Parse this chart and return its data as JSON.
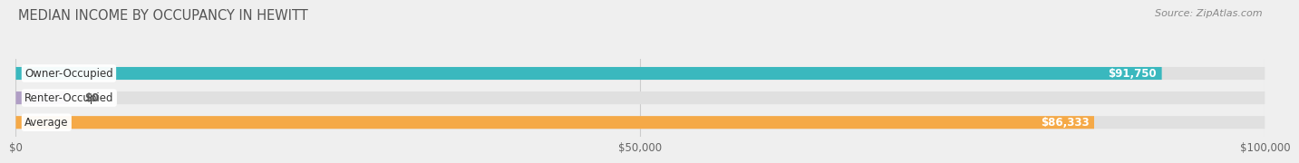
{
  "title": "MEDIAN INCOME BY OCCUPANCY IN HEWITT",
  "source": "Source: ZipAtlas.com",
  "categories": [
    "Owner-Occupied",
    "Renter-Occupied",
    "Average"
  ],
  "values": [
    91750,
    0,
    86333
  ],
  "bar_colors": [
    "#3ab8be",
    "#b09ec5",
    "#f5a947"
  ],
  "value_labels": [
    "$91,750",
    "$0",
    "$86,333"
  ],
  "xlim": [
    0,
    100000
  ],
  "xtick_labels": [
    "$0",
    "$50,000",
    "$100,000"
  ],
  "xtick_values": [
    0,
    50000,
    100000
  ],
  "background_color": "#efefef",
  "bar_background_color": "#e0e0e0",
  "title_fontsize": 10.5,
  "source_fontsize": 8,
  "bar_height": 0.52,
  "figsize": [
    14.06,
    1.97
  ]
}
